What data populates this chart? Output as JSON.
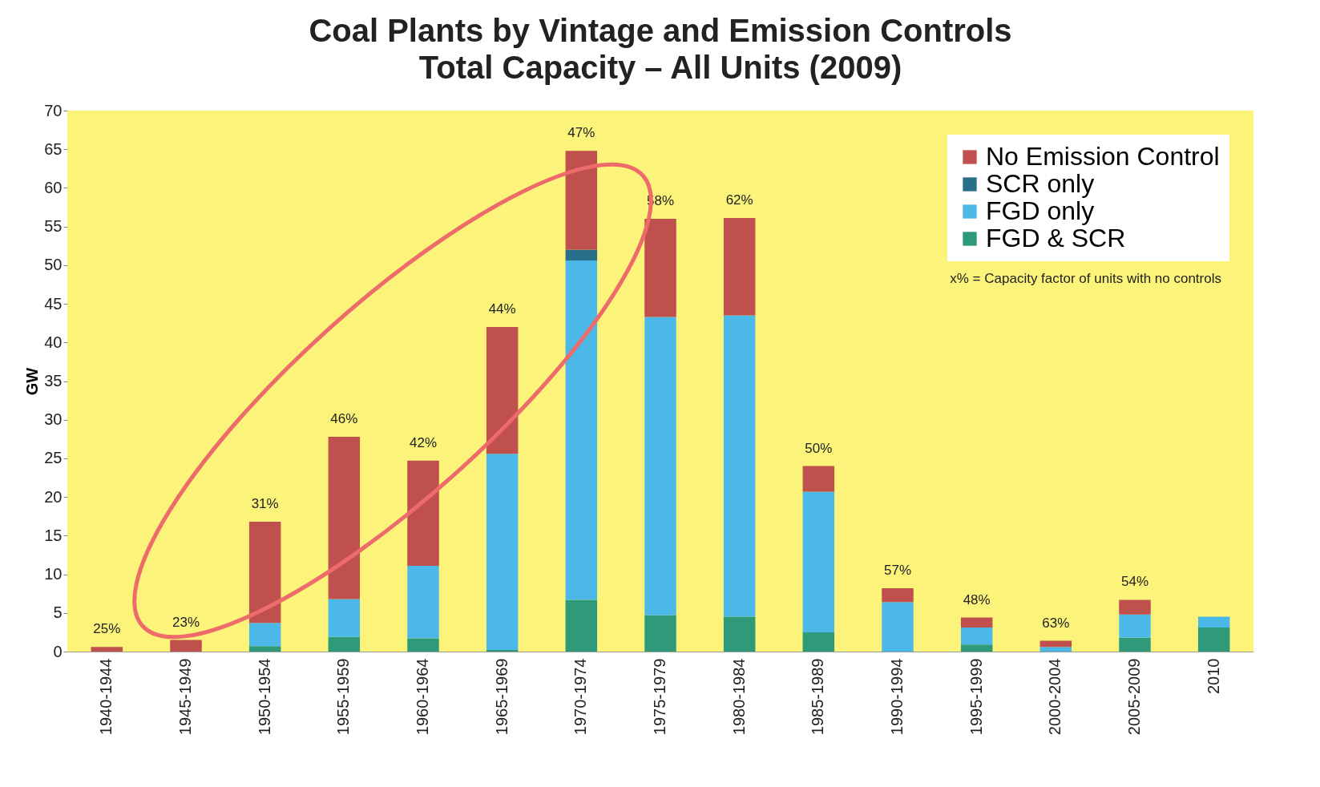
{
  "chart_data": {
    "type": "bar",
    "title": "Coal Plants by Vintage and Emission Controls",
    "subtitle": "Total Capacity – All Units (2009)",
    "ylabel": "GW",
    "categories": [
      "1940-1944",
      "1945-1949",
      "1950-1954",
      "1955-1959",
      "1960-1964",
      "1965-1969",
      "1970-1974",
      "1975-1979",
      "1980-1984",
      "1985-1989",
      "1990-1994",
      "1995-1999",
      "2000-2004",
      "2005-2009",
      "2010"
    ],
    "stacked": true,
    "series": [
      {
        "name": "FGD & SCR",
        "color": "#2e9a7a",
        "values": [
          0,
          0,
          0.7,
          1.9,
          1.7,
          0.2,
          6.7,
          4.7,
          4.5,
          2.5,
          0,
          0.9,
          0,
          1.8,
          3.1
        ]
      },
      {
        "name": "FGD only",
        "color": "#4bb8e8",
        "values": [
          0,
          0,
          3.0,
          4.9,
          9.4,
          25.4,
          43.9,
          38.6,
          39.0,
          18.2,
          6.4,
          2.2,
          0.6,
          3.0,
          1.4
        ]
      },
      {
        "name": "SCR only",
        "color": "#2a6f8a",
        "values": [
          0,
          0,
          0,
          0,
          0,
          0,
          1.4,
          0,
          0,
          0,
          0,
          0,
          0,
          0,
          0
        ]
      },
      {
        "name": "No Emission Control",
        "color": "#c0504d",
        "values": [
          0.6,
          1.5,
          13.1,
          21.0,
          13.6,
          16.4,
          12.8,
          12.7,
          12.6,
          3.3,
          1.8,
          1.3,
          0.8,
          1.9,
          0
        ]
      }
    ],
    "ylim": [
      0,
      70
    ],
    "yticks": [
      0,
      5,
      10,
      15,
      20,
      25,
      30,
      35,
      40,
      45,
      50,
      55,
      60,
      65,
      70
    ],
    "grid": false,
    "legend": "top right",
    "annotations": [
      {
        "text": "25%",
        "x": "1940-1944",
        "y": 0.6
      },
      {
        "text": "23%",
        "x": "1945-1949",
        "y": 1.5
      },
      {
        "text": "31%",
        "x": "1950-1954",
        "y": 16.8
      },
      {
        "text": "46%",
        "x": "1955-1959",
        "y": 27.8
      },
      {
        "text": "42%",
        "x": "1960-1964",
        "y": 24.7
      },
      {
        "text": "44%",
        "x": "1965-1969",
        "y": 42.0
      },
      {
        "text": "47%",
        "x": "1970-1974",
        "y": 64.8
      },
      {
        "text": "58%",
        "x": "1975-1979",
        "y": 56.0
      },
      {
        "text": "62%",
        "x": "1980-1984",
        "y": 56.1
      },
      {
        "text": "50%",
        "x": "1985-1989",
        "y": 24.0
      },
      {
        "text": "57%",
        "x": "1990-1994",
        "y": 8.2
      },
      {
        "text": "48%",
        "x": "1995-1999",
        "y": 4.4
      },
      {
        "text": "63%",
        "x": "2000-2004",
        "y": 1.4
      },
      {
        "text": "54%",
        "x": "2005-2009",
        "y": 6.7
      },
      "x% = Capacity factor of units with no controls"
    ]
  }
}
